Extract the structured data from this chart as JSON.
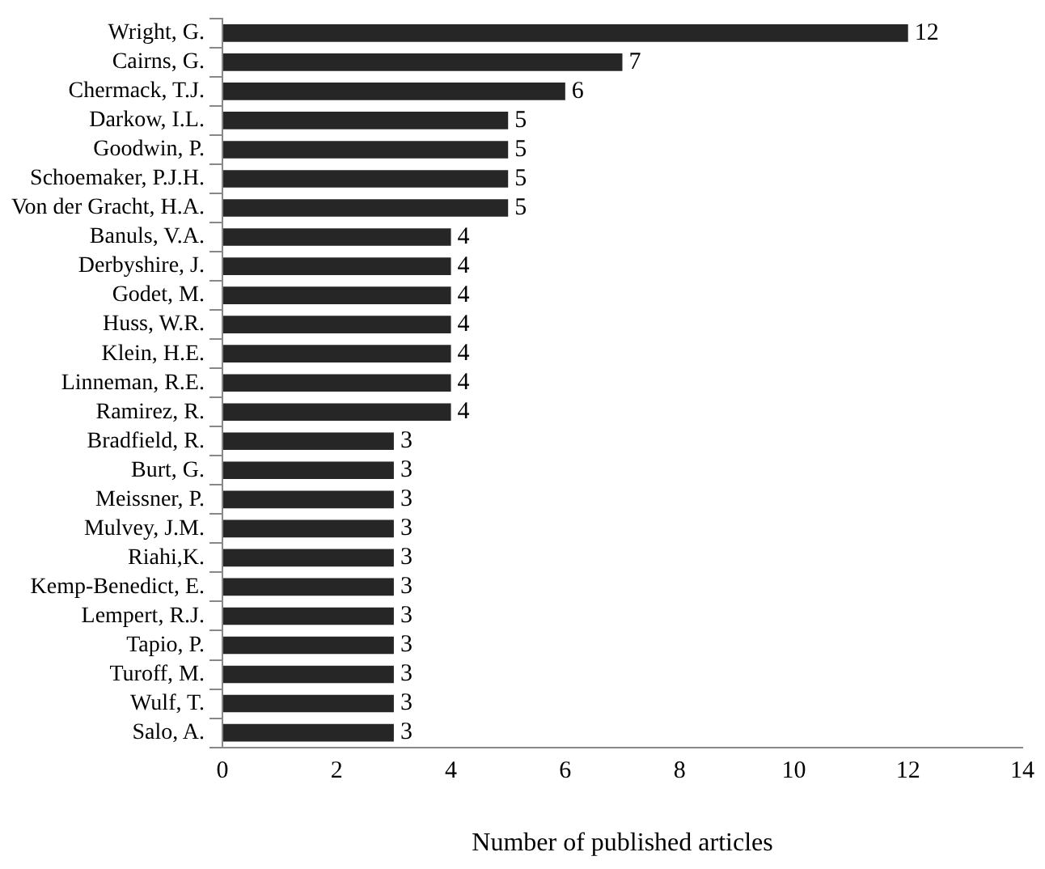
{
  "chart_data": {
    "type": "bar",
    "orientation": "horizontal",
    "xlabel": "Number of published articles",
    "categories": [
      "Wright, G.",
      "Cairns, G.",
      "Chermack, T.J.",
      "Darkow, I.L.",
      "Goodwin, P.",
      "Schoemaker, P.J.H.",
      "Von der Gracht, H.A.",
      "Banuls, V.A.",
      "Derbyshire, J.",
      "Godet, M.",
      "Huss, W.R.",
      "Klein, H.E.",
      "Linneman, R.E.",
      "Ramirez, R.",
      "Bradfield, R.",
      "Burt, G.",
      "Meissner, P.",
      "Mulvey, J.M.",
      "Riahi,K.",
      "Kemp-Benedict, E.",
      "Lempert, R.J.",
      "Tapio, P.",
      "Turoff, M.",
      "Wulf, T.",
      "Salo, A."
    ],
    "values": [
      12,
      7,
      6,
      5,
      5,
      5,
      5,
      4,
      4,
      4,
      4,
      4,
      4,
      4,
      3,
      3,
      3,
      3,
      3,
      3,
      3,
      3,
      3,
      3,
      3
    ],
    "color": "#262626",
    "xlim": [
      0,
      14
    ],
    "xticks": [
      0,
      2,
      4,
      6,
      8,
      10,
      12,
      14
    ],
    "grid": false,
    "legend": false,
    "data_labels": true
  }
}
